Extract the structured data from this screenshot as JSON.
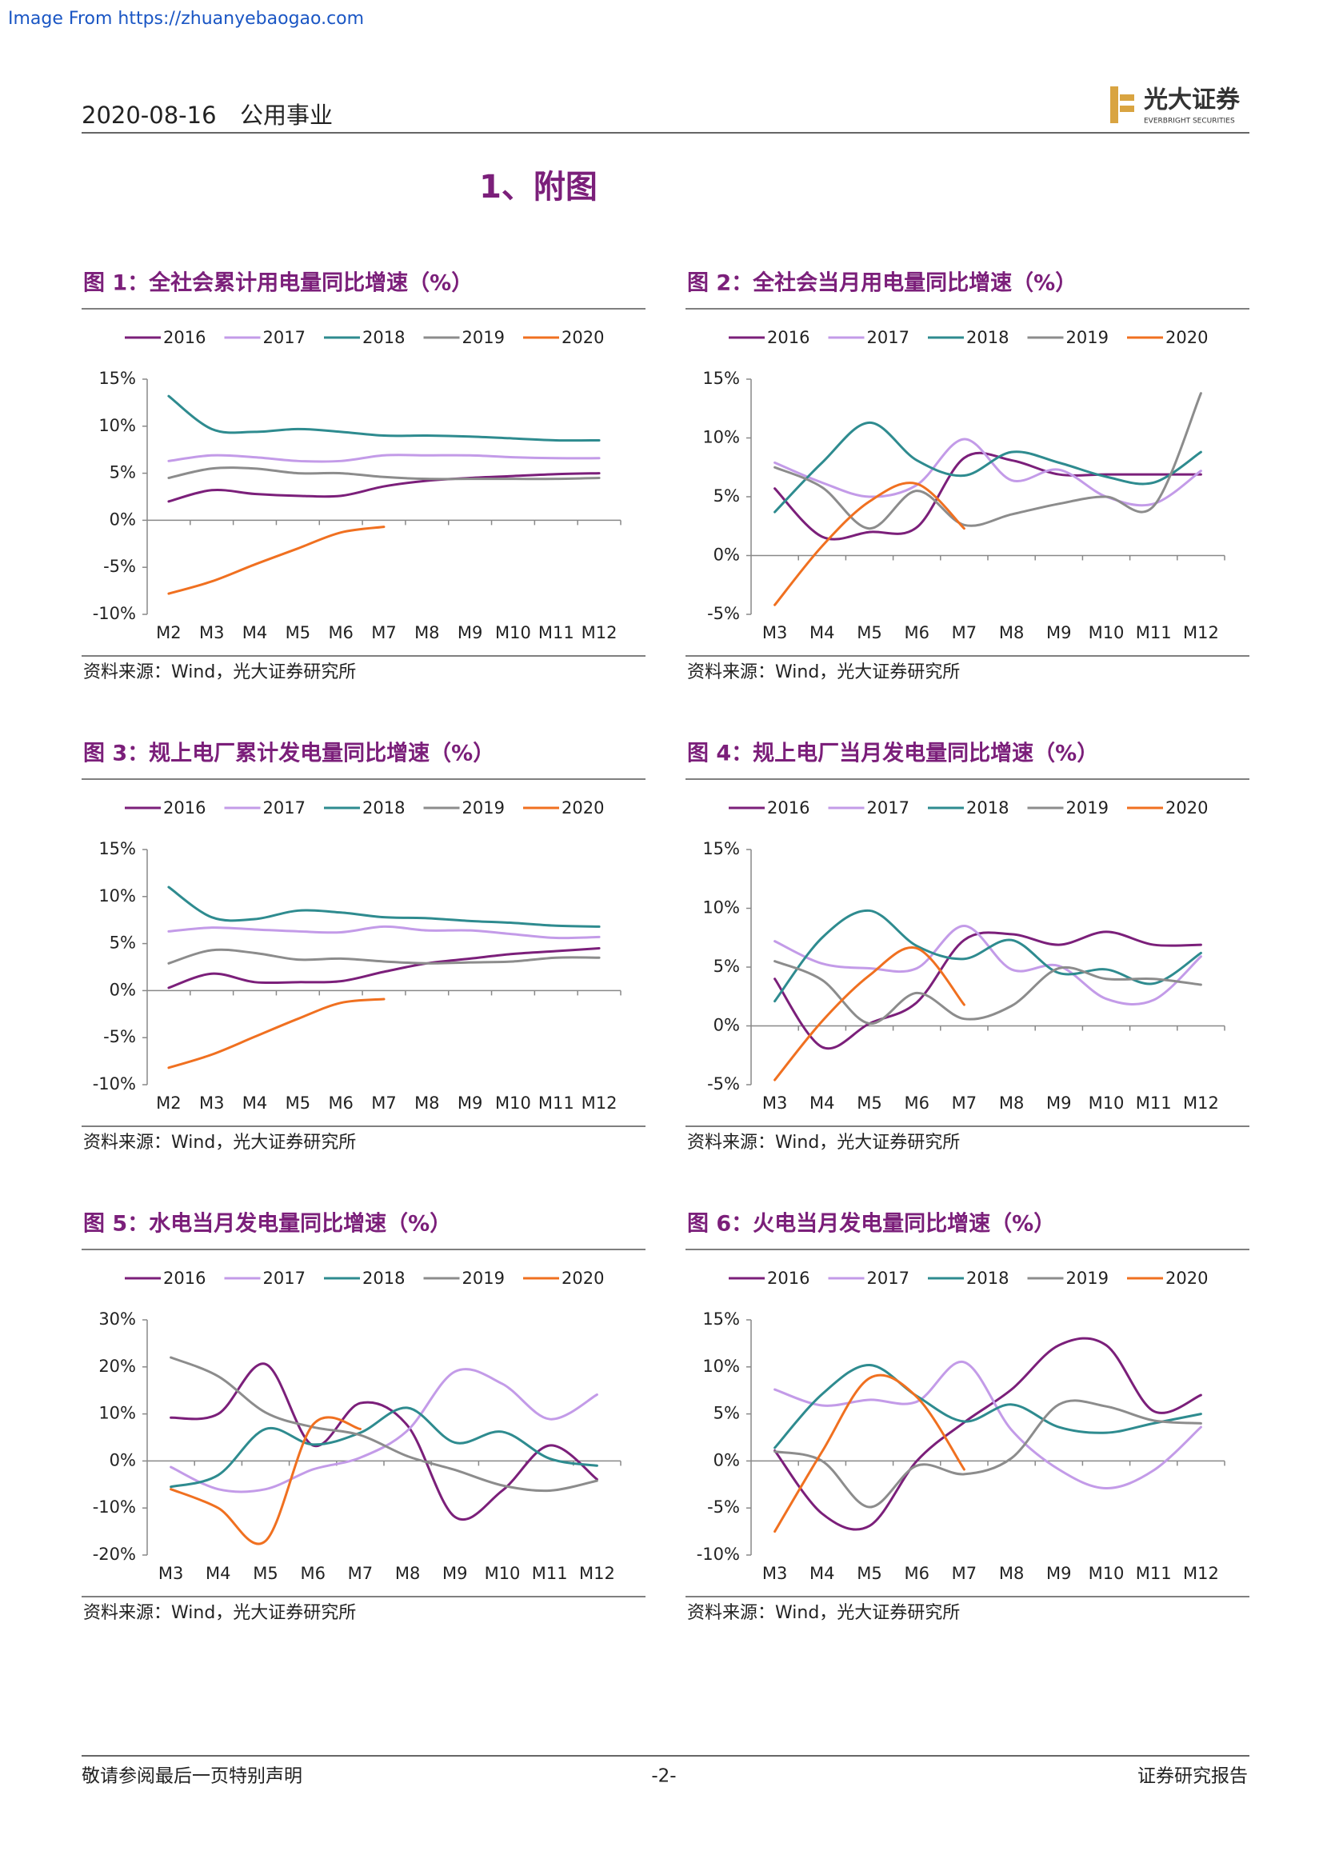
{
  "banner": "Image From https://zhuanyebaogao.com",
  "header": {
    "date": "2020-08-16",
    "sector": "公用事业",
    "logo_cn": "光大证券",
    "logo_en": "EVERBRIGHT SECURITIES"
  },
  "section_title": "1、附图",
  "chart_data": [
    {
      "type": "line",
      "title": "图 1：全社会累计用电量同比增速（%）",
      "source": "资料来源：Wind，光大证券研究所",
      "categories": [
        "M2",
        "M3",
        "M4",
        "M5",
        "M6",
        "M7",
        "M8",
        "M9",
        "M10",
        "M11",
        "M12"
      ],
      "ylim": [
        -10,
        15
      ],
      "yticks": [
        {
          "value": -10,
          "label": "-10%"
        },
        {
          "value": -5,
          "label": "-5%"
        },
        {
          "value": 0,
          "label": "0%"
        },
        {
          "value": 5,
          "label": "5%"
        },
        {
          "value": 10,
          "label": "10%"
        },
        {
          "value": 15,
          "label": "15%"
        }
      ],
      "series": [
        {
          "name": "2016",
          "color": "#7b1f7a",
          "values": [
            2.0,
            3.2,
            2.8,
            2.6,
            2.6,
            3.6,
            4.2,
            4.5,
            4.7,
            4.9,
            5.0
          ]
        },
        {
          "name": "2017",
          "color": "#c39be8",
          "values": [
            6.3,
            6.9,
            6.7,
            6.3,
            6.3,
            6.9,
            6.9,
            6.9,
            6.7,
            6.6,
            6.6
          ]
        },
        {
          "name": "2018",
          "color": "#2e8b8f",
          "values": [
            13.2,
            9.7,
            9.4,
            9.7,
            9.4,
            9.0,
            9.0,
            8.9,
            8.7,
            8.5,
            8.5
          ]
        },
        {
          "name": "2019",
          "color": "#8c8c8c",
          "values": [
            4.5,
            5.5,
            5.5,
            5.0,
            5.0,
            4.6,
            4.4,
            4.4,
            4.4,
            4.4,
            4.5
          ]
        },
        {
          "name": "2020",
          "color": "#f07020",
          "values": [
            -7.8,
            -6.5,
            -4.7,
            -3.0,
            -1.3,
            -0.7,
            null,
            null,
            null,
            null,
            null
          ]
        }
      ]
    },
    {
      "type": "line",
      "title": "图 2：全社会当月用电量同比增速（%）",
      "source": "资料来源：Wind，光大证券研究所",
      "categories": [
        "M3",
        "M4",
        "M5",
        "M6",
        "M7",
        "M8",
        "M9",
        "M10",
        "M11",
        "M12"
      ],
      "ylim": [
        -5,
        15
      ],
      "yticks": [
        {
          "value": -5,
          "label": "-5%"
        },
        {
          "value": 0,
          "label": "0%"
        },
        {
          "value": 5,
          "label": "5%"
        },
        {
          "value": 10,
          "label": "10%"
        },
        {
          "value": 15,
          "label": "15%"
        }
      ],
      "series": [
        {
          "name": "2016",
          "color": "#7b1f7a",
          "values": [
            5.7,
            1.6,
            2.0,
            2.4,
            8.3,
            8.1,
            6.9,
            6.9,
            6.9,
            6.9
          ]
        },
        {
          "name": "2017",
          "color": "#c39be8",
          "values": [
            7.9,
            6.2,
            5.0,
            6.0,
            9.9,
            6.4,
            7.3,
            5.0,
            4.4,
            7.2
          ]
        },
        {
          "name": "2018",
          "color": "#2e8b8f",
          "values": [
            3.7,
            7.9,
            11.3,
            8.1,
            6.8,
            8.8,
            7.9,
            6.7,
            6.2,
            8.8
          ]
        },
        {
          "name": "2019",
          "color": "#8c8c8c",
          "values": [
            7.5,
            5.8,
            2.3,
            5.5,
            2.6,
            3.5,
            4.4,
            5.0,
            4.2,
            13.8
          ]
        },
        {
          "name": "2020",
          "color": "#f07020",
          "values": [
            -4.2,
            0.8,
            4.6,
            6.1,
            2.3,
            null,
            null,
            null,
            null,
            null
          ]
        }
      ]
    },
    {
      "type": "line",
      "title": "图 3：规上电厂累计发电量同比增速（%）",
      "source": "资料来源：Wind，光大证券研究所",
      "categories": [
        "M2",
        "M3",
        "M4",
        "M5",
        "M6",
        "M7",
        "M8",
        "M9",
        "M10",
        "M11",
        "M12"
      ],
      "ylim": [
        -10,
        15
      ],
      "yticks": [
        {
          "value": -10,
          "label": "-10%"
        },
        {
          "value": -5,
          "label": "-5%"
        },
        {
          "value": 0,
          "label": "0%"
        },
        {
          "value": 5,
          "label": "5%"
        },
        {
          "value": 10,
          "label": "10%"
        },
        {
          "value": 15,
          "label": "15%"
        }
      ],
      "series": [
        {
          "name": "2016",
          "color": "#7b1f7a",
          "values": [
            0.3,
            1.8,
            0.9,
            0.9,
            1.0,
            2.0,
            2.9,
            3.4,
            3.9,
            4.2,
            4.5
          ]
        },
        {
          "name": "2017",
          "color": "#c39be8",
          "values": [
            6.3,
            6.7,
            6.5,
            6.3,
            6.2,
            6.8,
            6.4,
            6.4,
            6.0,
            5.6,
            5.7
          ]
        },
        {
          "name": "2018",
          "color": "#2e8b8f",
          "values": [
            11.0,
            7.8,
            7.6,
            8.5,
            8.3,
            7.8,
            7.7,
            7.4,
            7.2,
            6.9,
            6.8
          ]
        },
        {
          "name": "2019",
          "color": "#8c8c8c",
          "values": [
            2.9,
            4.3,
            4.0,
            3.3,
            3.4,
            3.1,
            2.9,
            3.0,
            3.1,
            3.5,
            3.5
          ]
        },
        {
          "name": "2020",
          "color": "#f07020",
          "values": [
            -8.2,
            -6.8,
            -4.9,
            -3.0,
            -1.3,
            -0.9,
            null,
            null,
            null,
            null,
            null
          ]
        }
      ]
    },
    {
      "type": "line",
      "title": "图 4：规上电厂当月发电量同比增速（%）",
      "source": "资料来源：Wind，光大证券研究所",
      "categories": [
        "M3",
        "M4",
        "M5",
        "M6",
        "M7",
        "M8",
        "M9",
        "M10",
        "M11",
        "M12"
      ],
      "ylim": [
        -5,
        15
      ],
      "yticks": [
        {
          "value": -5,
          "label": "-5%"
        },
        {
          "value": 0,
          "label": "0%"
        },
        {
          "value": 5,
          "label": "5%"
        },
        {
          "value": 10,
          "label": "10%"
        },
        {
          "value": 15,
          "label": "15%"
        }
      ],
      "series": [
        {
          "name": "2016",
          "color": "#7b1f7a",
          "values": [
            4.0,
            -1.8,
            0.2,
            2.0,
            7.3,
            7.8,
            6.9,
            8.0,
            6.9,
            6.9
          ]
        },
        {
          "name": "2017",
          "color": "#c39be8",
          "values": [
            7.2,
            5.3,
            4.9,
            4.9,
            8.5,
            4.8,
            5.1,
            2.3,
            2.2,
            5.9
          ]
        },
        {
          "name": "2018",
          "color": "#2e8b8f",
          "values": [
            2.1,
            7.5,
            9.8,
            6.8,
            5.7,
            7.3,
            4.5,
            4.8,
            3.6,
            6.2
          ]
        },
        {
          "name": "2019",
          "color": "#8c8c8c",
          "values": [
            5.5,
            3.9,
            0.2,
            2.8,
            0.6,
            1.7,
            4.9,
            4.0,
            4.0,
            3.5
          ]
        },
        {
          "name": "2020",
          "color": "#f07020",
          "values": [
            -4.6,
            0.4,
            4.3,
            6.6,
            1.8,
            null,
            null,
            null,
            null,
            null
          ]
        }
      ]
    },
    {
      "type": "line",
      "title": "图 5：水电当月发电量同比增速（%）",
      "source": "资料来源：Wind，光大证券研究所",
      "categories": [
        "M3",
        "M4",
        "M5",
        "M6",
        "M7",
        "M8",
        "M9",
        "M10",
        "M11",
        "M12"
      ],
      "ylim": [
        -20,
        30
      ],
      "yticks": [
        {
          "value": -20,
          "label": "-20%"
        },
        {
          "value": -10,
          "label": "-10%"
        },
        {
          "value": 0,
          "label": "0%"
        },
        {
          "value": 10,
          "label": "10%"
        },
        {
          "value": 20,
          "label": "20%"
        },
        {
          "value": 30,
          "label": "30%"
        }
      ],
      "series": [
        {
          "name": "2016",
          "color": "#7b1f7a",
          "values": [
            9.2,
            10.0,
            20.6,
            3.3,
            12.3,
            7.5,
            -11.9,
            -6.3,
            3.3,
            -3.9
          ]
        },
        {
          "name": "2017",
          "color": "#c39be8",
          "values": [
            -1.3,
            -6.0,
            -6.0,
            -1.8,
            0.7,
            6.5,
            19.0,
            16.4,
            8.9,
            14.1
          ]
        },
        {
          "name": "2018",
          "color": "#2e8b8f",
          "values": [
            -5.5,
            -3.0,
            6.8,
            3.5,
            6.0,
            11.3,
            3.9,
            6.2,
            0.5,
            -1.0
          ]
        },
        {
          "name": "2019",
          "color": "#8c8c8c",
          "values": [
            22.0,
            18.0,
            10.3,
            7.2,
            5.5,
            1.0,
            -1.9,
            -5.2,
            -6.3,
            -4.2
          ]
        },
        {
          "name": "2020",
          "color": "#f07020",
          "values": [
            -6.0,
            -10.0,
            -17.0,
            7.7,
            6.8,
            null,
            null,
            null,
            null,
            null
          ]
        }
      ]
    },
    {
      "type": "line",
      "title": "图 6：火电当月发电量同比增速（%）",
      "source": "资料来源：Wind，光大证券研究所",
      "categories": [
        "M3",
        "M4",
        "M5",
        "M6",
        "M7",
        "M8",
        "M9",
        "M10",
        "M11",
        "M12"
      ],
      "ylim": [
        -10,
        15
      ],
      "yticks": [
        {
          "value": -10,
          "label": "-10%"
        },
        {
          "value": -5,
          "label": "-5%"
        },
        {
          "value": 0,
          "label": "0%"
        },
        {
          "value": 5,
          "label": "5%"
        },
        {
          "value": 10,
          "label": "10%"
        },
        {
          "value": 15,
          "label": "15%"
        }
      ],
      "series": [
        {
          "name": "2016",
          "color": "#7b1f7a",
          "values": [
            1.1,
            -5.6,
            -6.9,
            0.0,
            4.1,
            7.6,
            12.3,
            12.3,
            5.3,
            7.0
          ]
        },
        {
          "name": "2017",
          "color": "#c39be8",
          "values": [
            7.6,
            5.9,
            6.5,
            6.3,
            10.5,
            3.3,
            -0.9,
            -2.9,
            -1.0,
            3.6
          ]
        },
        {
          "name": "2018",
          "color": "#2e8b8f",
          "values": [
            1.4,
            7.1,
            10.2,
            6.9,
            4.2,
            6.0,
            3.6,
            3.0,
            4.0,
            5.0
          ]
        },
        {
          "name": "2019",
          "color": "#8c8c8c",
          "values": [
            1.0,
            0.0,
            -4.9,
            -0.5,
            -1.4,
            0.3,
            6.0,
            5.8,
            4.3,
            4.0
          ]
        },
        {
          "name": "2020",
          "color": "#f07020",
          "values": [
            -7.5,
            1.0,
            8.8,
            6.8,
            -0.9,
            null,
            null,
            null,
            null,
            null
          ]
        }
      ]
    }
  ],
  "footer": {
    "disclaimer": "敬请参阅最后一页特别声明",
    "page": "-2-",
    "label": "证券研究报告"
  }
}
